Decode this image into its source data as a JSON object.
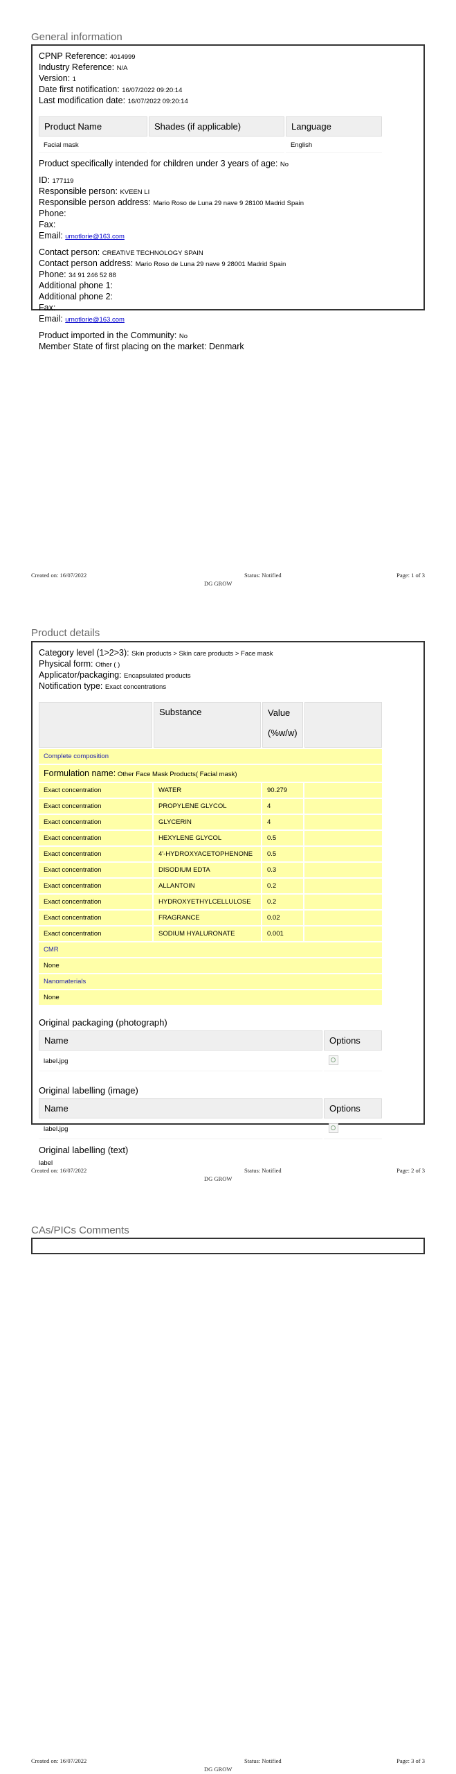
{
  "general": {
    "title": "General information",
    "fields": [
      {
        "label": "CPNP Reference:",
        "value": "4014999"
      },
      {
        "label": "Industry Reference:",
        "value": "N/A"
      },
      {
        "label": "Version:",
        "value": "1"
      },
      {
        "label": "Date first notification:",
        "value": "16/07/2022 09:20:14"
      },
      {
        "label": "Last modification date:",
        "value": "16/07/2022 09:20:14"
      }
    ],
    "product_table": {
      "headers": [
        "Product Name",
        "Shades (if applicable)",
        "Language"
      ],
      "rows": [
        [
          "Facial mask",
          "",
          "English"
        ]
      ]
    },
    "children": {
      "label": "Product specifically intended for children under 3 years of age:",
      "value": "No"
    },
    "responsible": [
      {
        "label": "ID:",
        "value": "177119"
      },
      {
        "label": "Responsible person:",
        "value": "KVEEN LI"
      },
      {
        "label": "Responsible person address:",
        "value": "Mario Roso de Luna 29 nave 9 28100 Madrid Spain"
      },
      {
        "label": "Phone:",
        "value": ""
      },
      {
        "label": "Fax:",
        "value": ""
      }
    ],
    "responsible_email": {
      "label": "Email:",
      "value": "urnotlorie@163.com"
    },
    "contact": [
      {
        "label": "Contact person:",
        "value": "CREATIVE TECHNOLOGY SPAIN"
      },
      {
        "label": "Contact person address:",
        "value": "Mario Roso de Luna 29 nave 9 28001 Madrid Spain"
      },
      {
        "label": "Phone:",
        "value": "34 91 246 52 88"
      },
      {
        "label": "Additional phone 1:",
        "value": ""
      },
      {
        "label": "Additional phone 2:",
        "value": ""
      },
      {
        "label": "Fax:",
        "value": ""
      }
    ],
    "contact_email": {
      "label": "Email:",
      "value": "urnotlorie@163.com"
    },
    "imported": {
      "label": "Product imported in the Community:",
      "value": "No"
    },
    "member_state": {
      "label": "Member State of first placing on the market:",
      "value": "Denmark"
    }
  },
  "product": {
    "title": "Product details",
    "fields": [
      {
        "label": "Category level (1>2>3):",
        "value": "Skin products > Skin care products > Face mask"
      },
      {
        "label": "Physical form:",
        "value": "Other ( )"
      },
      {
        "label": "Applicator/packaging:",
        "value": "Encapsulated products"
      },
      {
        "label": "Notification type:",
        "value": "Exact concentrations"
      }
    ],
    "composition": {
      "header_substance": "Substance",
      "header_value_1": "Value",
      "header_value_2": "(%w/w)",
      "complete_label": "Complete composition",
      "formulation_label": "Formulation name:",
      "formulation_value": "Other Face Mask Products( Facial mask)",
      "rows": [
        [
          "Exact concentration",
          "WATER",
          "90.279"
        ],
        [
          "Exact concentration",
          "PROPYLENE GLYCOL",
          "4"
        ],
        [
          "Exact concentration",
          "GLYCERIN",
          "4"
        ],
        [
          "Exact concentration",
          "HEXYLENE GLYCOL",
          "0.5"
        ],
        [
          "Exact concentration",
          "4'-HYDROXYACETOPHENONE",
          "0.5"
        ],
        [
          "Exact concentration",
          "DISODIUM EDTA",
          "0.3"
        ],
        [
          "Exact concentration",
          "ALLANTOIN",
          "0.2"
        ],
        [
          "Exact concentration",
          "HYDROXYETHYLCELLULOSE",
          "0.2"
        ],
        [
          "Exact concentration",
          "FRAGRANCE",
          "0.02"
        ],
        [
          "Exact concentration",
          "SODIUM HYALURONATE",
          "0.001"
        ]
      ],
      "cmr_label": "CMR",
      "cmr_value": "None",
      "nano_label": "Nanomaterials",
      "nano_value": "None"
    },
    "packaging": {
      "title": "Original packaging (photograph)",
      "headers": [
        "Name",
        "Options"
      ],
      "file": "label.jpg"
    },
    "labelling_image": {
      "title": "Original labelling (image)",
      "headers": [
        "Name",
        "Options"
      ],
      "file": "label.jpg"
    },
    "labelling_text": {
      "title": "Original labelling (text)",
      "value": "label"
    }
  },
  "comments": {
    "title": "CAs/PICs Comments"
  },
  "footers": [
    {
      "created": "Created on: 16/07/2022",
      "status": "Status: Notified",
      "page": "Page: 1 of 3",
      "dg": "DG GROW"
    },
    {
      "created": "Created on: 16/07/2022",
      "status": "Status: Notified",
      "page": "Page: 2 of 3",
      "dg": "DG GROW"
    },
    {
      "created": "Created on: 16/07/2022",
      "status": "Status: Notified",
      "page": "Page: 3 of 3",
      "dg": "DG GROW"
    }
  ]
}
